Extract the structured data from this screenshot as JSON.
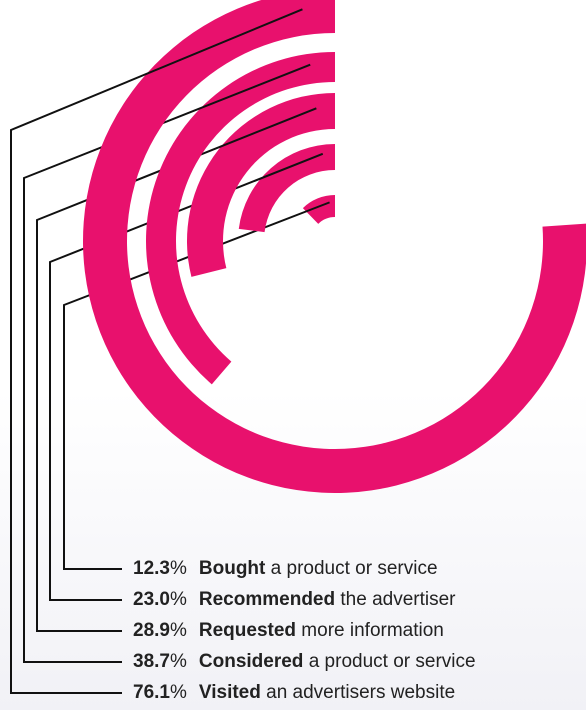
{
  "chart_data": {
    "type": "radial-bar",
    "color": "#e8116d",
    "max": 100,
    "series": [
      {
        "value": 12.3,
        "value_label": "12.3",
        "unit": "%",
        "bold_text": "Bought",
        "rest_text": "a product or service"
      },
      {
        "value": 23.0,
        "value_label": "23.0",
        "unit": "%",
        "bold_text": "Recommended",
        "rest_text": "the advertiser"
      },
      {
        "value": 28.9,
        "value_label": "28.9",
        "unit": "%",
        "bold_text": "Requested",
        "rest_text": "more information"
      },
      {
        "value": 38.7,
        "value_label": "38.7",
        "unit": "%",
        "bold_text": "Considered",
        "rest_text": "a product or service"
      },
      {
        "value": 76.1,
        "value_label": "76.1",
        "unit": "%",
        "bold_text": "Visited",
        "rest_text": "an advertisers website"
      }
    ]
  }
}
